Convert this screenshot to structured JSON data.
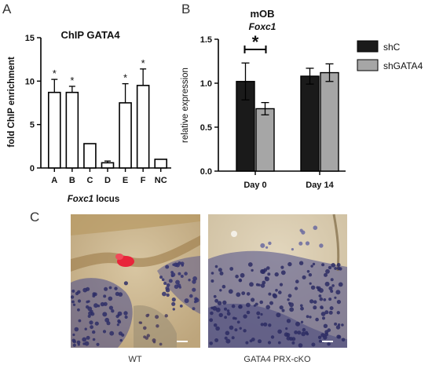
{
  "panels": {
    "a": {
      "letter": "A"
    },
    "b": {
      "letter": "B"
    },
    "c": {
      "letter": "C",
      "captions": [
        "WT",
        "GATA4 PRX-cKO"
      ]
    }
  },
  "colors": {
    "shC": "#1a1a1a",
    "shGATA4": "#a6a6a6",
    "panelA_bar_fill": "#ffffff",
    "panelA_bar_stroke": "#000000",
    "asterisk": "#111111"
  },
  "chart_data": [
    {
      "type": "bar",
      "title": "ChIP GATA4",
      "xlabel_italic": "Foxc1",
      "xlabel_rest": " locus",
      "ylabel": "fold ChIP enrichment",
      "categories": [
        "A",
        "B",
        "C",
        "D",
        "E",
        "F",
        "NC"
      ],
      "values": [
        8.7,
        8.7,
        2.8,
        0.6,
        7.5,
        9.5,
        1.0
      ],
      "errors": [
        1.5,
        0.7,
        0.0,
        0.2,
        2.2,
        1.9,
        0.0
      ],
      "significant": [
        true,
        true,
        false,
        false,
        true,
        true,
        false
      ],
      "significance_mark": "*",
      "ylim": [
        0,
        15
      ],
      "yticks": [
        0,
        5,
        10,
        15
      ],
      "grid": false
    },
    {
      "type": "bar",
      "title": "mOB",
      "subtitle": "Foxc1",
      "ylabel": "relative expression",
      "categories": [
        "Day 0",
        "Day 14"
      ],
      "series": [
        {
          "name": "shC",
          "values": [
            1.02,
            1.08
          ],
          "errors": [
            0.21,
            0.09
          ]
        },
        {
          "name": "shGATA4",
          "values": [
            0.71,
            1.12
          ],
          "errors": [
            0.07,
            0.1
          ]
        }
      ],
      "ylim": [
        0,
        1.5
      ],
      "yticks": [
        "0.0",
        "0.5",
        "1.0",
        "1.5"
      ],
      "legend_position": "right",
      "significance": {
        "category": "Day 0",
        "mark": "*"
      },
      "grid": false
    }
  ]
}
